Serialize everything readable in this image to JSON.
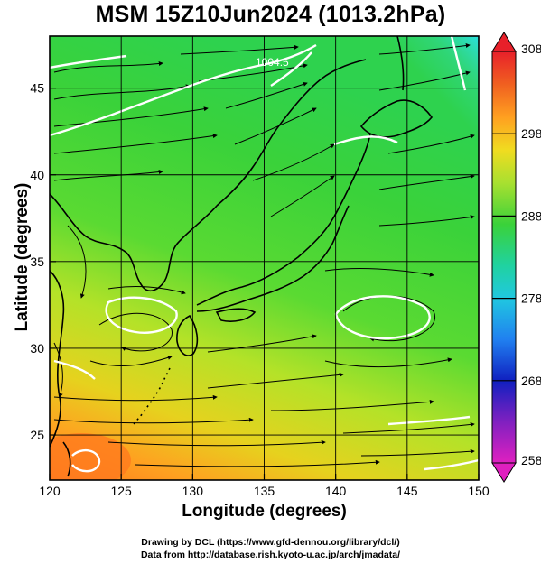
{
  "title": "MSM 15Z10Jun2024 (1013.2hPa)",
  "x_axis": {
    "label": "Longitude (degrees)",
    "range": [
      120,
      150
    ],
    "ticks": [
      "120",
      "125",
      "130",
      "135",
      "140",
      "145",
      "150"
    ]
  },
  "y_axis": {
    "label": "Latitude  (degrees)",
    "range": [
      22.4,
      48
    ],
    "ticks": [
      "25",
      "30",
      "35",
      "40",
      "45"
    ]
  },
  "colorbar": {
    "min": 258,
    "max": 308,
    "ticks": [
      "308",
      "298",
      "288",
      "278",
      "268",
      "258"
    ]
  },
  "isobar_label": "1004.5",
  "credits": {
    "line1": "Drawing by DCL (https://www.gfd-dennou.org/library/dcl/)",
    "line2": "Data from http://database.rish.kyoto-u.ac.jp/arch/jmadata/"
  },
  "colors": {
    "warm": "#ff8c1a",
    "mid": "#3ad23a",
    "cool": "#2ae0c8"
  }
}
